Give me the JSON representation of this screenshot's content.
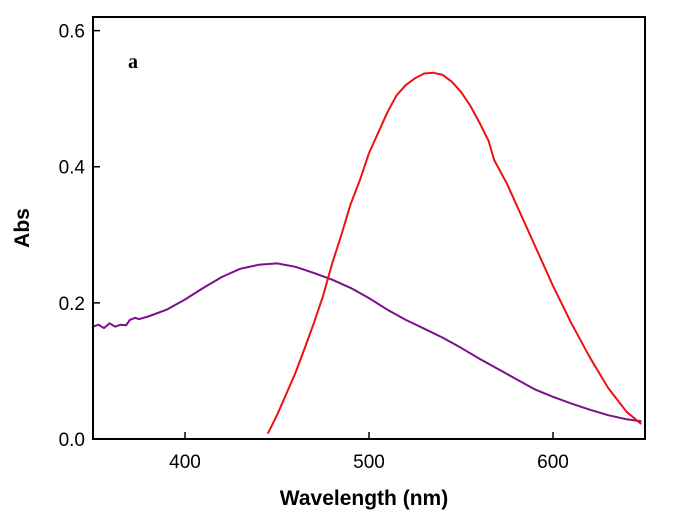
{
  "chart_data": {
    "type": "line",
    "panel_label": "a",
    "xlabel": "Wavelength (nm)",
    "ylabel": "Abs",
    "xlim": [
      350,
      650
    ],
    "ylim": [
      0,
      0.62
    ],
    "x_ticks": [
      400,
      500,
      600
    ],
    "y_ticks": [
      0.0,
      0.2,
      0.4,
      0.6
    ],
    "y_tick_labels": [
      "0.0",
      "0.2",
      "0.4",
      "0.6"
    ],
    "grid": false,
    "series": [
      {
        "color": "#7b0f8c",
        "points": [
          [
            350,
            0.165
          ],
          [
            353,
            0.168
          ],
          [
            356,
            0.163
          ],
          [
            359,
            0.17
          ],
          [
            362,
            0.165
          ],
          [
            365,
            0.168
          ],
          [
            368,
            0.167
          ],
          [
            370,
            0.175
          ],
          [
            373,
            0.178
          ],
          [
            375,
            0.176
          ],
          [
            380,
            0.18
          ],
          [
            390,
            0.19
          ],
          [
            400,
            0.205
          ],
          [
            410,
            0.222
          ],
          [
            420,
            0.238
          ],
          [
            430,
            0.25
          ],
          [
            440,
            0.256
          ],
          [
            450,
            0.258
          ],
          [
            460,
            0.253
          ],
          [
            470,
            0.244
          ],
          [
            480,
            0.234
          ],
          [
            490,
            0.222
          ],
          [
            500,
            0.207
          ],
          [
            510,
            0.19
          ],
          [
            520,
            0.175
          ],
          [
            530,
            0.162
          ],
          [
            540,
            0.149
          ],
          [
            550,
            0.134
          ],
          [
            560,
            0.118
          ],
          [
            570,
            0.103
          ],
          [
            580,
            0.088
          ],
          [
            590,
            0.073
          ],
          [
            600,
            0.062
          ],
          [
            610,
            0.052
          ],
          [
            620,
            0.043
          ],
          [
            630,
            0.035
          ],
          [
            640,
            0.029
          ],
          [
            648,
            0.026
          ]
        ]
      },
      {
        "color": "#ee1111",
        "points": [
          [
            445,
            0.008
          ],
          [
            450,
            0.035
          ],
          [
            455,
            0.066
          ],
          [
            460,
            0.097
          ],
          [
            465,
            0.133
          ],
          [
            470,
            0.17
          ],
          [
            475,
            0.21
          ],
          [
            480,
            0.258
          ],
          [
            485,
            0.3
          ],
          [
            490,
            0.345
          ],
          [
            495,
            0.38
          ],
          [
            500,
            0.42
          ],
          [
            505,
            0.45
          ],
          [
            510,
            0.48
          ],
          [
            515,
            0.505
          ],
          [
            520,
            0.52
          ],
          [
            525,
            0.53
          ],
          [
            530,
            0.537
          ],
          [
            535,
            0.538
          ],
          [
            540,
            0.535
          ],
          [
            545,
            0.525
          ],
          [
            550,
            0.51
          ],
          [
            555,
            0.49
          ],
          [
            560,
            0.465
          ],
          [
            565,
            0.438
          ],
          [
            568,
            0.41
          ],
          [
            575,
            0.375
          ],
          [
            580,
            0.345
          ],
          [
            590,
            0.285
          ],
          [
            600,
            0.225
          ],
          [
            610,
            0.17
          ],
          [
            620,
            0.12
          ],
          [
            630,
            0.075
          ],
          [
            640,
            0.04
          ],
          [
            648,
            0.022
          ]
        ]
      }
    ]
  }
}
